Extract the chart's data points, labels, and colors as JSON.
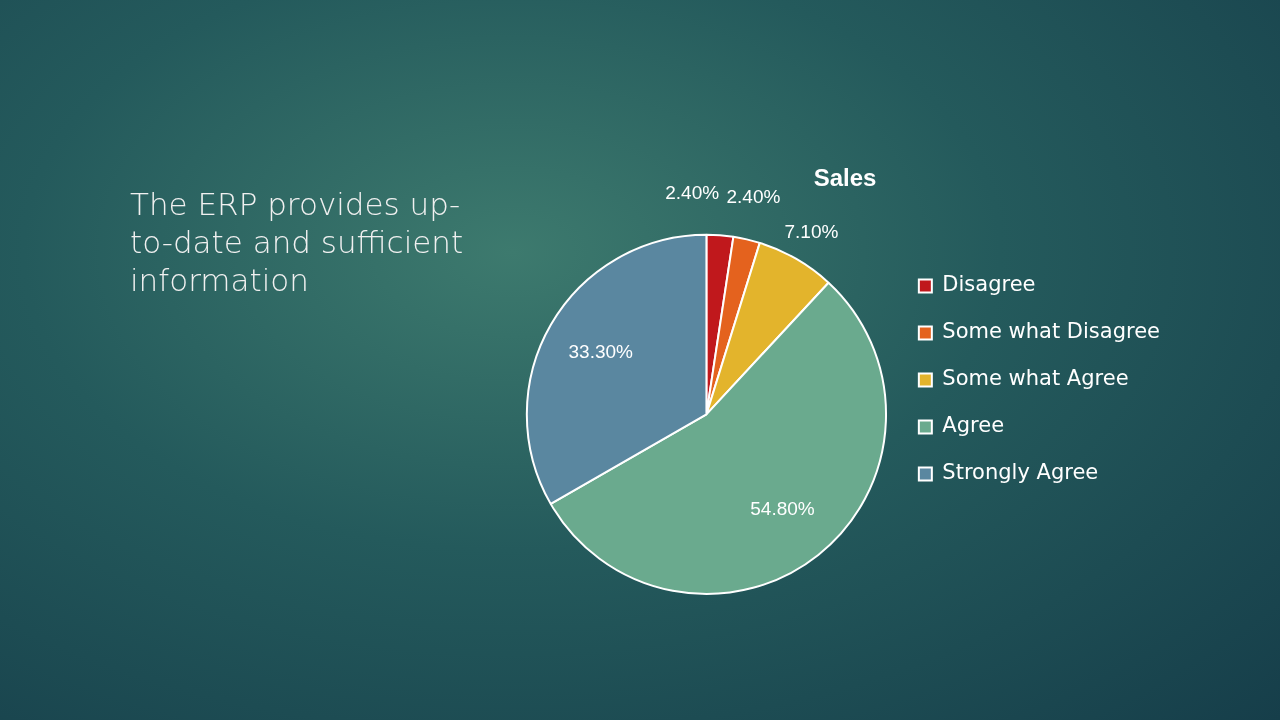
{
  "chart_data": {
    "type": "pie",
    "title": "Sales",
    "annotations": [
      "The ERP provides up-to-date and sufficient information"
    ],
    "categories": [
      "Disagree",
      "Some what Disagree",
      "Some what Agree",
      "Agree",
      "Strongly Agree"
    ],
    "values": [
      2.4,
      2.4,
      7.1,
      54.8,
      33.3
    ],
    "colors": [
      "#c0181c",
      "#e4621e",
      "#e3b42c",
      "#6aaa8e",
      "#5a87a0"
    ],
    "value_labels": [
      "2.40%",
      "2.40%",
      "7.10%",
      "54.80%",
      "33.30%"
    ],
    "legend": "right"
  }
}
